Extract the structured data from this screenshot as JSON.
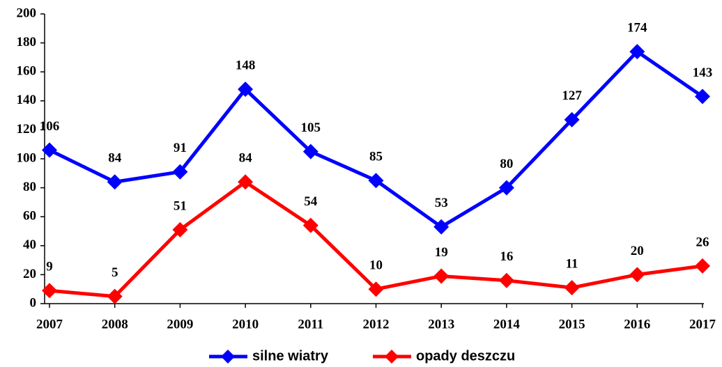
{
  "chart_data": {
    "type": "line",
    "categories": [
      "2007",
      "2008",
      "2009",
      "2010",
      "2011",
      "2012",
      "2013",
      "2014",
      "2015",
      "2016",
      "2017"
    ],
    "series": [
      {
        "name": "silne wiatry",
        "color": "#0000ff",
        "values": [
          106,
          84,
          91,
          148,
          105,
          85,
          53,
          80,
          127,
          174,
          143
        ]
      },
      {
        "name": "opady deszczu",
        "color": "#ff0000",
        "values": [
          9,
          5,
          51,
          84,
          54,
          10,
          19,
          16,
          11,
          20,
          26
        ]
      }
    ],
    "ylim": [
      0,
      200
    ],
    "yticks": [
      0,
      20,
      40,
      60,
      80,
      100,
      120,
      140,
      160,
      180,
      200
    ],
    "legend": "bottom"
  }
}
